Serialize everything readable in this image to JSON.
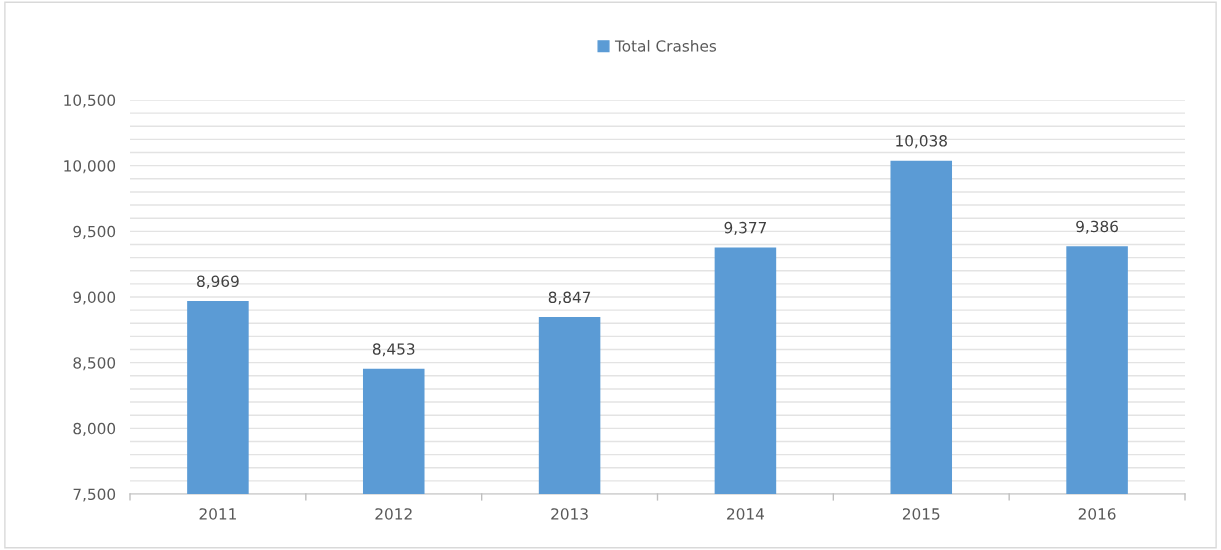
{
  "chart_data": {
    "type": "bar",
    "categories": [
      "2011",
      "2012",
      "2013",
      "2014",
      "2015",
      "2016"
    ],
    "series": [
      {
        "name": "Total Crashes",
        "color": "#5b9bd5",
        "values": [
          8969,
          8453,
          8847,
          9377,
          10038,
          9386
        ]
      }
    ],
    "ylim": [
      7500,
      10500
    ],
    "yticks": [
      {
        "value": 7500,
        "label": "7,500"
      },
      {
        "value": 7600,
        "label": null
      },
      {
        "value": 7700,
        "label": null
      },
      {
        "value": 7800,
        "label": null
      },
      {
        "value": 7900,
        "label": null
      },
      {
        "value": 8000,
        "label": "8,000"
      },
      {
        "value": 8100,
        "label": null
      },
      {
        "value": 8200,
        "label": null
      },
      {
        "value": 8300,
        "label": null
      },
      {
        "value": 8400,
        "label": null
      },
      {
        "value": 8500,
        "label": "8,500"
      },
      {
        "value": 8600,
        "label": null
      },
      {
        "value": 8700,
        "label": null
      },
      {
        "value": 8800,
        "label": null
      },
      {
        "value": 8900,
        "label": null
      },
      {
        "value": 9000,
        "label": "9,000"
      },
      {
        "value": 9100,
        "label": null
      },
      {
        "value": 9200,
        "label": null
      },
      {
        "value": 9300,
        "label": null
      },
      {
        "value": 9400,
        "label": null
      },
      {
        "value": 9500,
        "label": "9,500"
      },
      {
        "value": 9600,
        "label": null
      },
      {
        "value": 9700,
        "label": null
      },
      {
        "value": 9800,
        "label": null
      },
      {
        "value": 9900,
        "label": null
      },
      {
        "value": 10000,
        "label": "10,000"
      },
      {
        "value": 10100,
        "label": null
      },
      {
        "value": 10200,
        "label": null
      },
      {
        "value": 10300,
        "label": null
      },
      {
        "value": 10400,
        "label": null
      },
      {
        "value": 10500,
        "label": "10,500"
      }
    ],
    "value_labels": [
      "8,969",
      "8,453",
      "8,847",
      "9,377",
      "10,038",
      "9,386"
    ],
    "grid": "y",
    "legend": "top"
  }
}
